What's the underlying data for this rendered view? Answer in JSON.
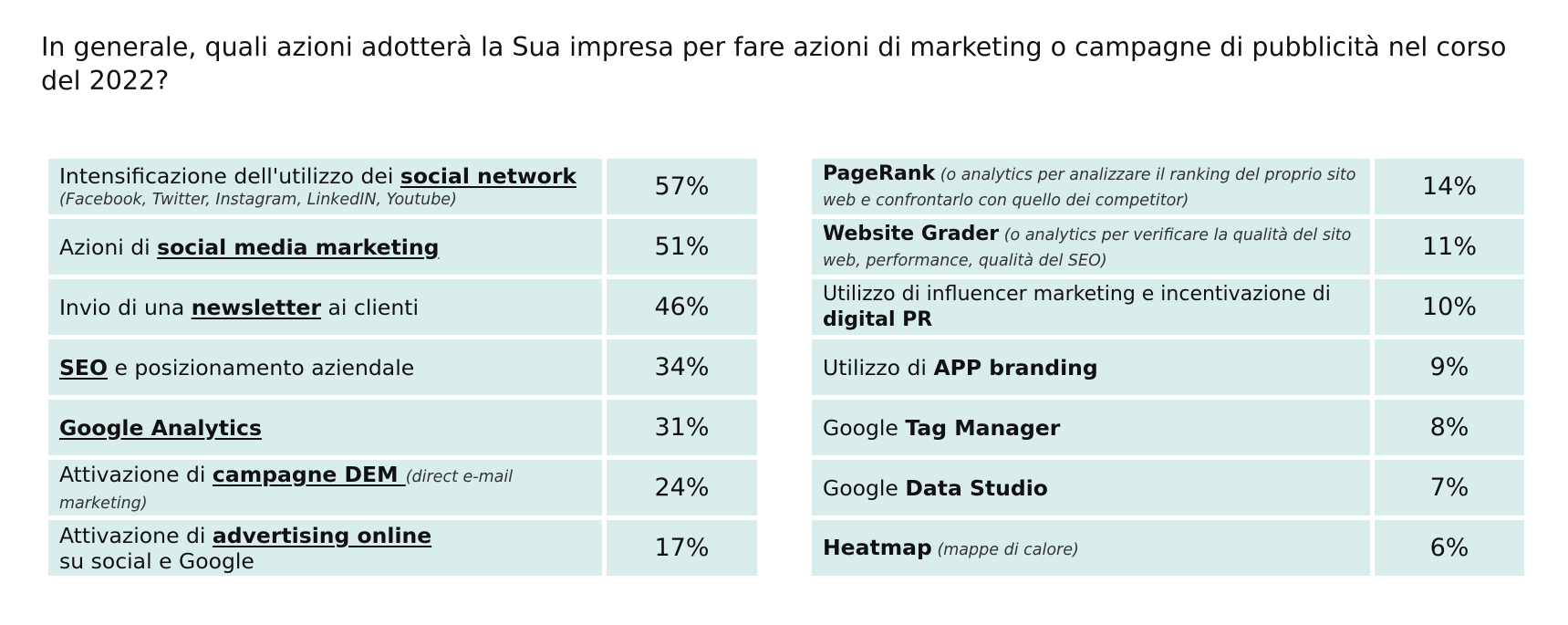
{
  "title": "In generale, quali azioni adotterà la Sua impresa per fare azioni di marketing o campagne di pubblicità nel corso del 2022?",
  "left_rows": [
    {
      "pre": "Intensificazione dell'utilizzo dei ",
      "em": "social network",
      "post": "",
      "note": "(Facebook, Twitter, Instagram, LinkedIN, Youtube)",
      "value": "57%"
    },
    {
      "pre": "Azioni di ",
      "em": "social media marketing",
      "post": "",
      "value": "51%"
    },
    {
      "pre": "Invio di una ",
      "em": "newsletter",
      "post": " ai clienti",
      "value": "46%"
    },
    {
      "pre": "",
      "em": "SEO",
      "post": " e posizionamento aziendale",
      "value": "34%"
    },
    {
      "pre": "",
      "em": "Google Analytics",
      "post": "",
      "value": "31%"
    },
    {
      "pre": "Attivazione di ",
      "em": "campagne DEM ",
      "note": "(direct e-mail marketing)",
      "value": "24%"
    },
    {
      "pre": "Attivazione di ",
      "em": "advertising online",
      "line2": "su social e Google",
      "value": "17%"
    }
  ],
  "right_rows": [
    {
      "pre": "",
      "em": "PageRank",
      "note": " (o analytics per analizzare il ranking del proprio sito web e confrontarlo con quello dei competitor)",
      "value": "14%"
    },
    {
      "pre": "",
      "em": "Website Grader",
      "note": " (o analytics per verificare la qualità del sito web, performance, qualità del SEO)",
      "value": "11%"
    },
    {
      "pre": "Utilizzo di influencer marketing e incentivazione di ",
      "em": "digital PR",
      "value": "10%"
    },
    {
      "pre": "Utilizzo di ",
      "em": "APP branding",
      "value": "9%"
    },
    {
      "pre": "Google ",
      "em": "Tag Manager",
      "value": "8%"
    },
    {
      "pre": "Google ",
      "em": "Data Studio",
      "value": "7%"
    },
    {
      "pre": "",
      "em": "Heatmap",
      "note": " (mappe di calore)",
      "value": "6%"
    }
  ],
  "colors": {
    "cell_bg": "#d9eded",
    "text": "#111111"
  }
}
